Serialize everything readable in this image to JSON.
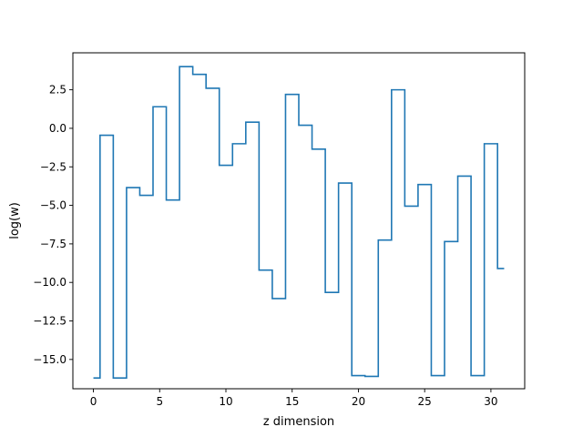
{
  "chart_data": {
    "type": "line",
    "drawstyle": "steps-mid",
    "title": "",
    "xlabel": "z dimension",
    "ylabel": "log(w)",
    "xlim": [
      -1.55,
      32.55
    ],
    "ylim": [
      -16.9,
      4.9
    ],
    "xticks": [
      0,
      5,
      10,
      15,
      20,
      25,
      30
    ],
    "xtick_labels": [
      "0",
      "5",
      "10",
      "15",
      "20",
      "25",
      "30"
    ],
    "yticks": [
      2.5,
      0.0,
      -2.5,
      -5.0,
      -7.5,
      -10.0,
      -12.5,
      -15.0
    ],
    "ytick_labels": [
      "2.5",
      "0.0",
      "−2.5",
      "−5.0",
      "−7.5",
      "−10.0",
      "−12.5",
      "−15.0"
    ],
    "grid": false,
    "legend": "none",
    "series": [
      {
        "color": "#1f77b4",
        "x": [
          0,
          1,
          2,
          3,
          4,
          5,
          6,
          7,
          8,
          9,
          10,
          11,
          12,
          13,
          14,
          15,
          16,
          17,
          18,
          19,
          20,
          21,
          22,
          23,
          24,
          25,
          26,
          27,
          28,
          29,
          30,
          31
        ],
        "y": [
          -16.2,
          -0.45,
          -16.2,
          -3.85,
          -4.35,
          1.4,
          -4.65,
          4.0,
          3.5,
          2.6,
          -2.4,
          -1.0,
          0.4,
          -9.2,
          -11.05,
          2.2,
          0.2,
          -1.35,
          -10.65,
          -3.55,
          -16.05,
          -16.1,
          -7.25,
          2.5,
          -5.05,
          -3.65,
          -16.05,
          -7.35,
          -3.1,
          -16.05,
          -1.0,
          -9.1
        ]
      }
    ]
  }
}
